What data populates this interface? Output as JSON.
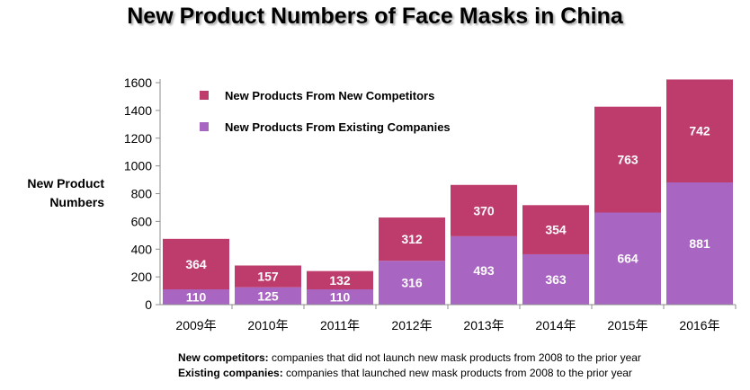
{
  "chart_data": {
    "type": "bar",
    "stacked": true,
    "title": "New Product Numbers of Face Masks in China",
    "ylabel_line1": "New Product",
    "ylabel_line2": "Numbers",
    "xlabel": "",
    "categories": [
      "2009年",
      "2010年",
      "2011年",
      "2012年",
      "2013年",
      "2014年",
      "2015年",
      "2016年"
    ],
    "series": [
      {
        "name": "New Products From Existing Companies",
        "color": "#a865c2",
        "values": [
          110,
          125,
          110,
          316,
          493,
          363,
          664,
          881
        ]
      },
      {
        "name": "New Products From New Competitors",
        "color": "#bd3c6c",
        "values": [
          364,
          157,
          132,
          312,
          370,
          354,
          763,
          742
        ]
      }
    ],
    "ylim": [
      0,
      1600
    ],
    "yticks": [
      0,
      200,
      400,
      600,
      800,
      1000,
      1200,
      1400,
      1600
    ],
    "legend_position": "top-left inside plot",
    "grid": false
  },
  "notes": {
    "new_term": "New competitors:",
    "new_text": " companies that did not launch new mask products from 2008 to the prior year",
    "existing_term": "Existing companies:",
    "existing_text": " companies that launched new mask products from 2008  to the prior year"
  }
}
